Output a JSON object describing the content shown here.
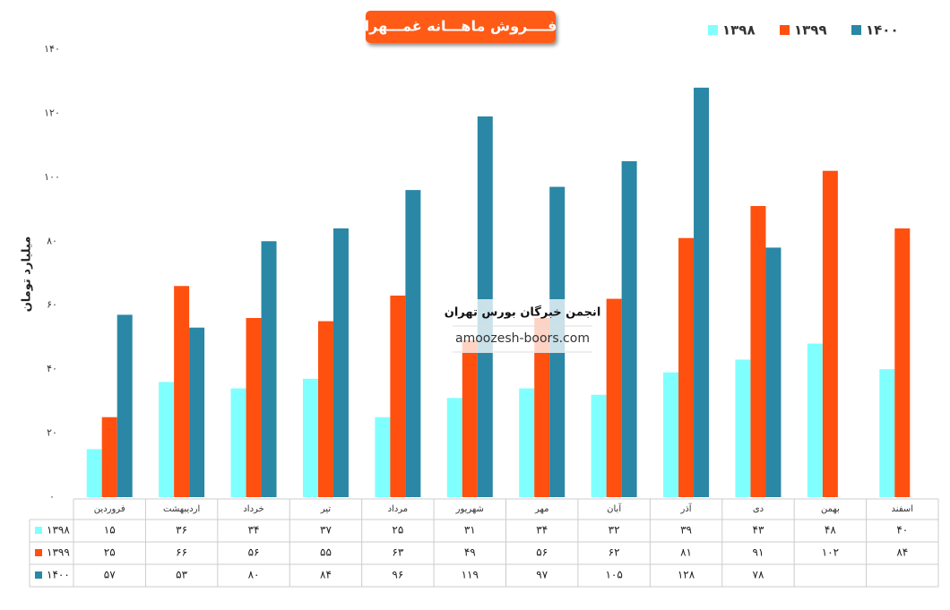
{
  "chart_data": {
    "type": "bar",
    "title": "فــــروش ماهـــانه غمـــهرا",
    "y_label": "میلیارد تومان",
    "categories": [
      "فروردین",
      "اردیبهشت",
      "خرداد",
      "تیر",
      "مرداد",
      "شهریور",
      "مهر",
      "آبان",
      "آذر",
      "دی",
      "بهمن",
      "اسفند"
    ],
    "series": [
      {
        "name": "۱۳۹۸",
        "color": "#80ffff",
        "values": [
          15,
          36,
          34,
          37,
          25,
          31,
          34,
          32,
          39,
          43,
          48,
          40
        ],
        "value_labels": [
          "۱۵",
          "۳۶",
          "۳۴",
          "۳۷",
          "۲۵",
          "۳۱",
          "۳۴",
          "۳۲",
          "۳۹",
          "۴۳",
          "۴۸",
          "۴۰"
        ]
      },
      {
        "name": "۱۳۹۹",
        "color": "#ff5010",
        "values": [
          25,
          66,
          56,
          55,
          63,
          49,
          56,
          62,
          81,
          91,
          102,
          84
        ],
        "value_labels": [
          "۲۵",
          "۶۶",
          "۵۶",
          "۵۵",
          "۶۳",
          "۴۹",
          "۵۶",
          "۶۲",
          "۸۱",
          "۹۱",
          "۱۰۲",
          "۸۴"
        ]
      },
      {
        "name": "۱۴۰۰",
        "color": "#2a87a6",
        "values": [
          57,
          53,
          80,
          84,
          96,
          119,
          97,
          105,
          128,
          78,
          null,
          null
        ],
        "value_labels": [
          "۵۷",
          "۵۳",
          "۸۰",
          "۸۴",
          "۹۶",
          "۱۱۹",
          "۹۷",
          "۱۰۵",
          "۱۲۸",
          "۷۸",
          null,
          null
        ]
      }
    ],
    "ylim": [
      0,
      140
    ],
    "yticks": [
      {
        "value": 0,
        "label": "۰"
      },
      {
        "value": 20,
        "label": "۲۰"
      },
      {
        "value": 40,
        "label": "۴۰"
      },
      {
        "value": 60,
        "label": "۶۰"
      },
      {
        "value": 80,
        "label": "۸۰"
      },
      {
        "value": 100,
        "label": "۱۰۰"
      },
      {
        "value": 120,
        "label": "۱۲۰"
      },
      {
        "value": 140,
        "label": "۱۴۰"
      }
    ],
    "legend": "top-right"
  },
  "watermark": {
    "name": "انجمن خبرگان بورس تهران",
    "url": "amoozesh-boors.com"
  }
}
